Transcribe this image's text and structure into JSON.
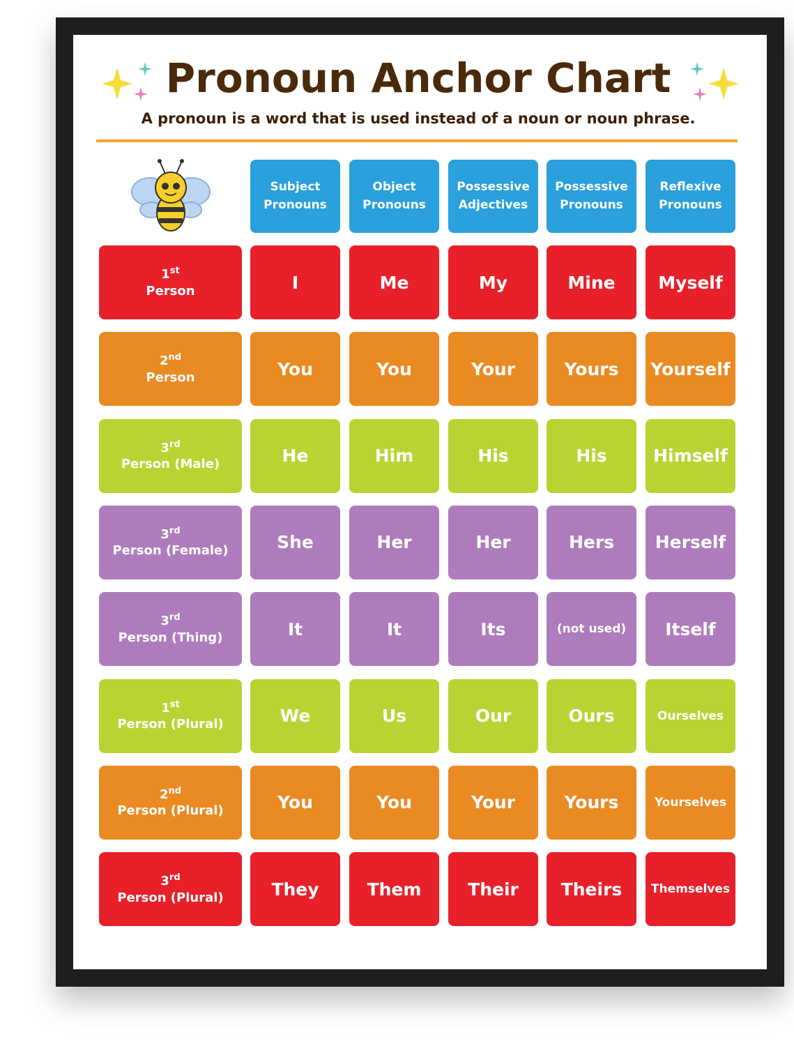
{
  "header": {
    "title": "Pronoun Anchor Chart",
    "subtitle": "A pronoun is a word that is used instead of a noun or noun phrase."
  },
  "table": {
    "header_color": "#2aa0dc",
    "columns": [
      "Subject Pronouns",
      "Object Pronouns",
      "Possessive Adjectives",
      "Possessive Pronouns",
      "Reflexive Pronouns"
    ],
    "rows": [
      {
        "number": "1",
        "suffix": "st",
        "label": "Person",
        "color": "#e8202a",
        "cells": [
          "I",
          "Me",
          "My",
          "Mine",
          "Myself"
        ]
      },
      {
        "number": "2",
        "suffix": "nd",
        "label": "Person",
        "color": "#ea8a22",
        "cells": [
          "You",
          "You",
          "Your",
          "Yours",
          "Yourself"
        ]
      },
      {
        "number": "3",
        "suffix": "rd",
        "label": "Person (Male)",
        "color": "#b8d432",
        "cells": [
          "He",
          "Him",
          "His",
          "His",
          "Himself"
        ]
      },
      {
        "number": "3",
        "suffix": "rd",
        "label": "Person (Female)",
        "color": "#ae7cbc",
        "cells": [
          "She",
          "Her",
          "Her",
          "Hers",
          "Herself"
        ]
      },
      {
        "number": "3",
        "suffix": "rd",
        "label": "Person (Thing)",
        "color": "#ae7cbc",
        "cells": [
          "It",
          "It",
          "Its",
          "(not used)",
          "Itself"
        ]
      },
      {
        "number": "1",
        "suffix": "st",
        "label": "Person (Plural)",
        "color": "#b8d432",
        "cells": [
          "We",
          "Us",
          "Our",
          "Ours",
          "Ourselves"
        ]
      },
      {
        "number": "2",
        "suffix": "nd",
        "label": "Person (Plural)",
        "color": "#ea8a22",
        "cells": [
          "You",
          "You",
          "Your",
          "Yours",
          "Yourselves"
        ]
      },
      {
        "number": "3",
        "suffix": "rd",
        "label": "Person (Plural)",
        "color": "#e8202a",
        "cells": [
          "They",
          "Them",
          "Their",
          "Theirs",
          "Themselves"
        ]
      }
    ]
  }
}
